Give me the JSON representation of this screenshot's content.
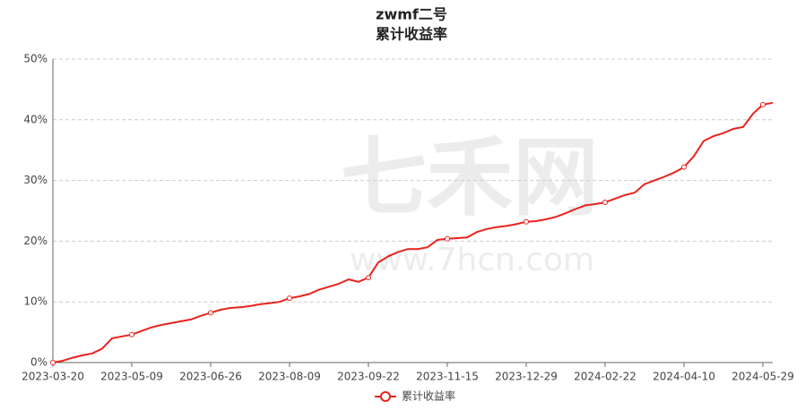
{
  "chart_data": {
    "type": "line",
    "title": "zwmf二号",
    "subtitle": "累计收益率",
    "watermark": [
      "七禾网",
      "www.7hcn.com"
    ],
    "categories": [
      "2023-03-20",
      null,
      null,
      null,
      null,
      null,
      null,
      null,
      "2023-05-09",
      null,
      null,
      null,
      null,
      null,
      null,
      null,
      "2023-06-26",
      null,
      null,
      null,
      null,
      null,
      null,
      null,
      "2023-08-09",
      null,
      null,
      null,
      null,
      null,
      null,
      null,
      "2023-09-22",
      null,
      null,
      null,
      null,
      null,
      null,
      null,
      "2023-11-15",
      null,
      null,
      null,
      null,
      null,
      null,
      null,
      "2023-12-29",
      null,
      null,
      null,
      null,
      null,
      null,
      null,
      "2024-02-22",
      null,
      null,
      null,
      null,
      null,
      null,
      null,
      "2024-04-10",
      null,
      null,
      null,
      null,
      null,
      null,
      null,
      "2024-05-29",
      null
    ],
    "series": [
      {
        "name": "累计收益率",
        "color": "#e8231e",
        "values": [
          0,
          0.3,
          0.8,
          1.2,
          1.5,
          2.3,
          4.0,
          4.3,
          4.6,
          5.2,
          5.8,
          6.2,
          6.5,
          6.8,
          7.1,
          7.7,
          8.2,
          8.7,
          9.0,
          9.1,
          9.3,
          9.6,
          9.8,
          10.0,
          10.6,
          10.9,
          11.3,
          12.0,
          12.5,
          13.0,
          13.7,
          13.3,
          14.0,
          16.5,
          17.5,
          18.2,
          18.7,
          18.7,
          19.0,
          20.2,
          20.4,
          20.5,
          20.6,
          21.5,
          22.0,
          22.3,
          22.5,
          22.8,
          23.2,
          23.3,
          23.6,
          24.0,
          24.6,
          25.3,
          25.9,
          26.1,
          26.4,
          27.0,
          27.6,
          28.0,
          29.4,
          30.0,
          30.6,
          31.3,
          32.2,
          34.0,
          36.5,
          37.3,
          37.8,
          38.5,
          38.8,
          41.0,
          42.5,
          42.8
        ]
      }
    ],
    "ylim": [
      0,
      50
    ],
    "yticks": [
      {
        "value": 0,
        "label": "0%"
      },
      {
        "value": 10,
        "label": "10%"
      },
      {
        "value": 20,
        "label": "20%"
      },
      {
        "value": 30,
        "label": "30%"
      },
      {
        "value": 40,
        "label": "40%"
      },
      {
        "value": 50,
        "label": "50%"
      }
    ],
    "grid": true,
    "legend": "bottom"
  }
}
